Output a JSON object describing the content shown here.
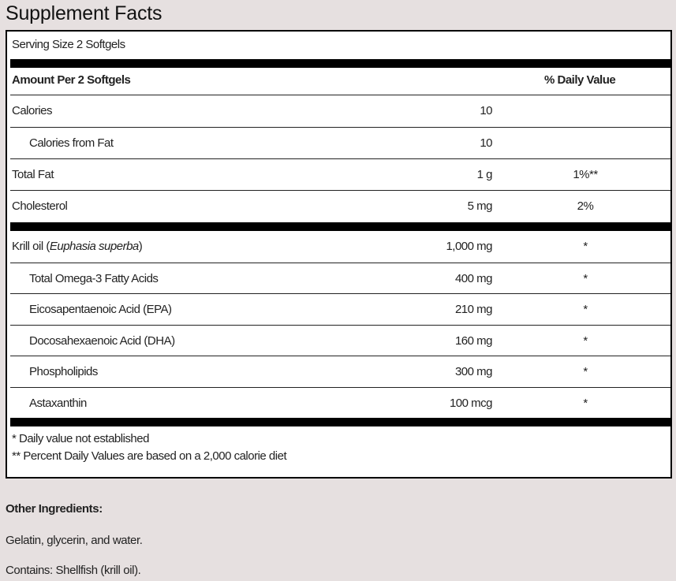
{
  "title": "Supplement Facts",
  "serving_size": "Serving Size 2 Softgels",
  "header": {
    "amount": "Amount Per 2 Softgels",
    "daily_value": "% Daily Value"
  },
  "group1": [
    {
      "name": "Calories",
      "amount": "10",
      "dv": "",
      "indent": false
    },
    {
      "name": "Calories from Fat",
      "amount": "10",
      "dv": "",
      "indent": true
    },
    {
      "name": "Total Fat",
      "amount": "1 g",
      "dv": "1%**",
      "indent": false
    },
    {
      "name": "Cholesterol",
      "amount": "5 mg",
      "dv": "2%",
      "indent": false
    }
  ],
  "group2": [
    {
      "name": "Krill oil (",
      "name_italic": "Euphasia superba",
      "name_suffix": ")",
      "amount": "1,000 mg",
      "dv": "*",
      "indent": false
    },
    {
      "name": "Total Omega-3 Fatty Acids",
      "amount": "400 mg",
      "dv": "*",
      "indent": true
    },
    {
      "name": "Eicosapentaenoic Acid (EPA)",
      "amount": "210 mg",
      "dv": "*",
      "indent": true
    },
    {
      "name": "Docosahexaenoic Acid (DHA)",
      "amount": "160 mg",
      "dv": "*",
      "indent": true
    },
    {
      "name": "Phospholipids",
      "amount": "300 mg",
      "dv": "*",
      "indent": true
    },
    {
      "name": "Astaxanthin",
      "amount": "100 mcg",
      "dv": "*",
      "indent": true
    }
  ],
  "footnotes": [
    "* Daily value not established",
    "** Percent Daily Values are based on a 2,000 calorie diet"
  ],
  "other_ingredients": {
    "heading": "Other Ingredients:",
    "text": "Gelatin, glycerin, and water.",
    "contains": "Contains: Shellfish (krill oil)."
  }
}
